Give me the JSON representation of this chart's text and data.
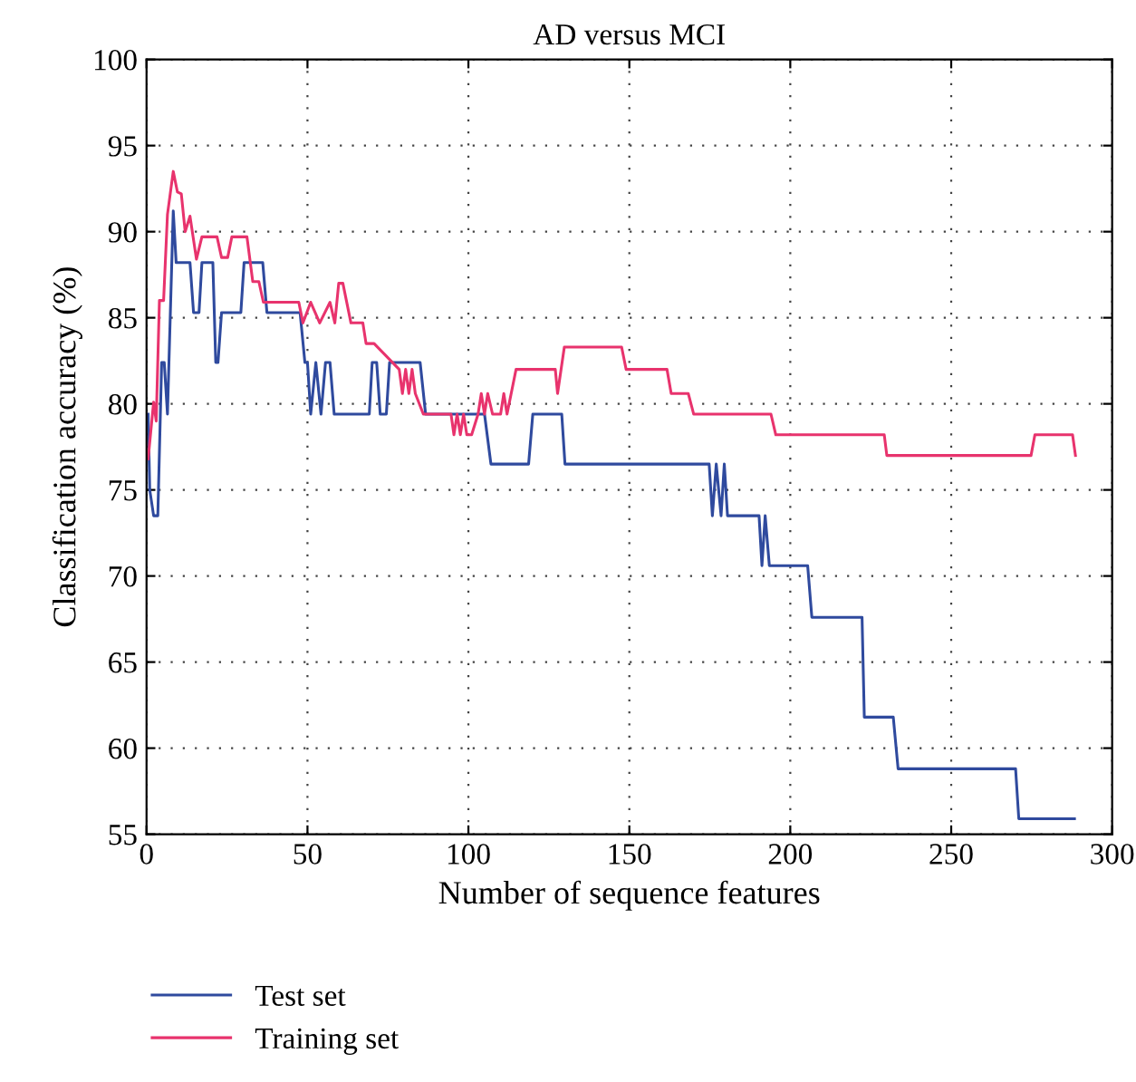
{
  "chart_data": {
    "type": "line",
    "title": "AD versus MCI",
    "xlabel": "Number of sequence features",
    "ylabel": "Classification accuracy (%)",
    "xlim": [
      0,
      300
    ],
    "ylim": [
      55,
      100
    ],
    "xticks": [
      0,
      50,
      100,
      150,
      200,
      250,
      300
    ],
    "yticks": [
      55,
      60,
      65,
      70,
      75,
      80,
      85,
      90,
      95,
      100
    ],
    "grid": true,
    "legend": "bottom left",
    "line_style": "solid",
    "marker": "none",
    "series": [
      {
        "name": "Test set",
        "color": "#2f4a9e",
        "x": [
          0.5,
          1,
          2.2,
          3.5,
          4.7,
          5.5,
          6.5,
          8.3,
          9.2,
          13.5,
          14.6,
          16.3,
          17.2,
          20.6,
          21.5,
          22.2,
          23.3,
          29.3,
          30.3,
          36.1,
          37.4,
          47.7,
          49.2,
          50,
          51,
          52.6,
          54.2,
          55.6,
          57,
          58.3,
          69.2,
          70.1,
          71.5,
          72.6,
          74.5,
          75.5,
          78,
          85,
          86.7,
          105,
          107,
          118.7,
          120,
          129,
          130,
          174.8,
          175.8,
          177,
          178.5,
          179.5,
          180.5,
          190.3,
          191.2,
          192.2,
          193.5,
          205.4,
          206.7,
          222.3,
          223,
          232,
          233.5,
          270,
          271,
          288.3
        ],
        "values": [
          79.4,
          75,
          73.5,
          73.5,
          82.4,
          82.4,
          79.4,
          91.2,
          88.2,
          88.2,
          85.3,
          85.3,
          88.2,
          88.2,
          82.4,
          82.4,
          85.3,
          85.3,
          88.2,
          88.2,
          85.3,
          85.3,
          82.4,
          82.4,
          79.4,
          82.4,
          79.4,
          82.4,
          82.4,
          79.4,
          79.4,
          82.4,
          82.4,
          79.4,
          79.4,
          82.4,
          82.4,
          82.4,
          79.4,
          79.4,
          76.5,
          76.5,
          79.4,
          79.4,
          76.5,
          76.5,
          73.5,
          76.5,
          73.5,
          76.5,
          73.5,
          73.5,
          70.6,
          73.5,
          70.6,
          70.6,
          67.6,
          67.6,
          61.8,
          61.8,
          58.8,
          58.8,
          55.9,
          55.9
        ]
      },
      {
        "name": "Training set",
        "color": "#e8336d",
        "x": [
          0.5,
          2.2,
          3,
          4,
          5.3,
          6.5,
          8.3,
          9.6,
          10.8,
          12,
          13.5,
          15.5,
          17.2,
          21.9,
          23.3,
          25.2,
          26.5,
          31.2,
          33,
          34.9,
          36.3,
          47.3,
          48.6,
          51,
          53.8,
          57,
          58.5,
          59.7,
          61,
          63.5,
          67.2,
          68.2,
          70.7,
          78.5,
          79.5,
          80.5,
          81.5,
          82.5,
          83.5,
          86,
          94.6,
          95.5,
          96.5,
          97.5,
          98.5,
          99.5,
          101,
          103,
          104,
          105,
          106,
          107.5,
          110,
          111,
          112,
          114.8,
          127,
          127.7,
          129.8,
          147.6,
          149,
          161.7,
          163,
          168.3,
          170,
          194,
          195.5,
          229.2,
          230,
          274.8,
          276,
          287.7,
          288.6
        ],
        "values": [
          76.8,
          80.1,
          79,
          86,
          86,
          91,
          93.5,
          92.3,
          92.2,
          90,
          90.9,
          88.4,
          89.7,
          89.7,
          88.5,
          88.5,
          89.7,
          89.7,
          87.1,
          87.1,
          85.9,
          85.9,
          84.7,
          85.9,
          84.7,
          85.9,
          84.7,
          87,
          87,
          84.7,
          84.7,
          83.5,
          83.5,
          82,
          80.6,
          82,
          80.6,
          82,
          80.6,
          79.4,
          79.4,
          78.2,
          79.4,
          78.2,
          79.4,
          78.2,
          78.2,
          79.4,
          80.6,
          79.4,
          80.6,
          79.4,
          79.4,
          80.6,
          79.4,
          82,
          82,
          80.6,
          83.3,
          83.3,
          82,
          82,
          80.6,
          80.6,
          79.4,
          79.4,
          78.2,
          78.2,
          77,
          77,
          78.2,
          78.2,
          77
        ]
      }
    ]
  }
}
